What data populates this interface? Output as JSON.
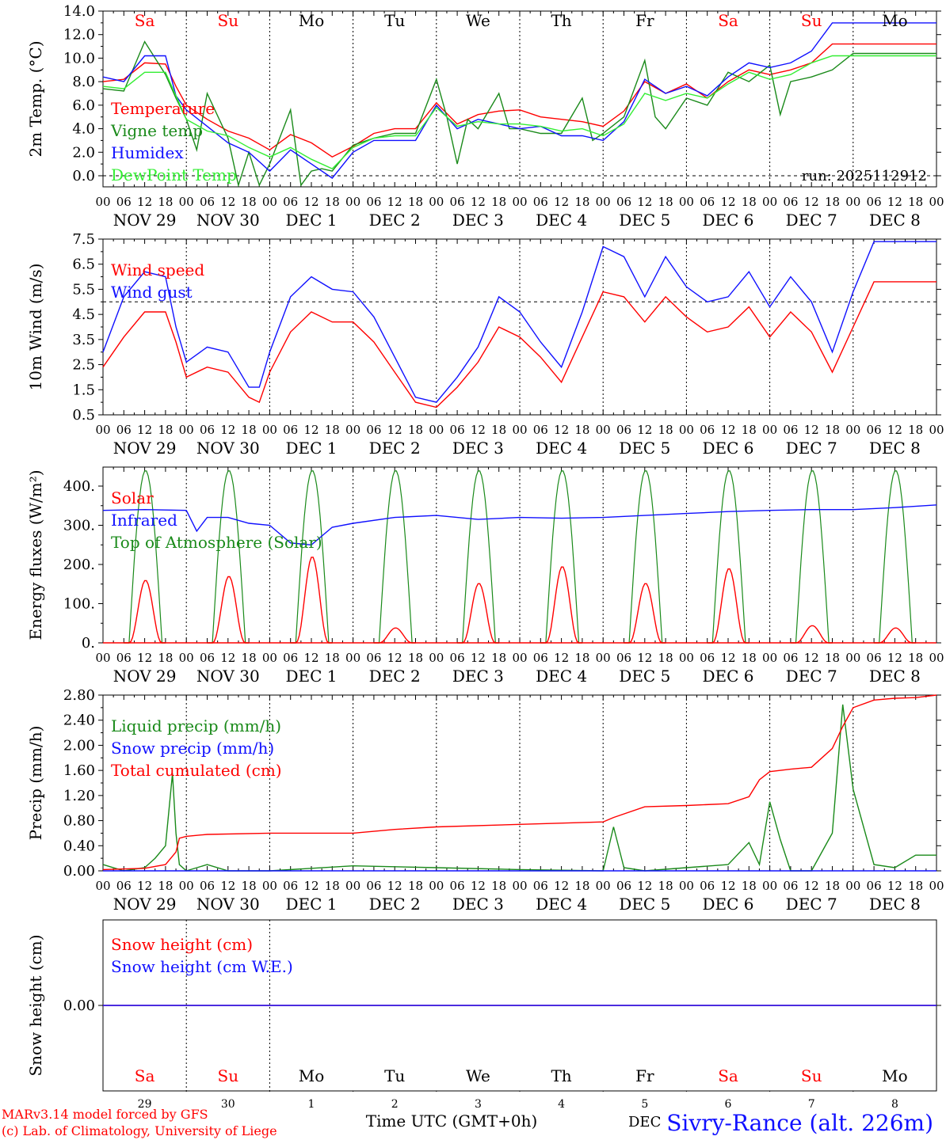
{
  "colors": {
    "red": "#ff0000",
    "green": "#1a8a1a",
    "blue": "#1010ff",
    "lightgreen": "#33ee33",
    "black": "#000000"
  },
  "days": [
    {
      "abbr": "Sa",
      "weekend": true,
      "date": "NOV 29",
      "num": "29"
    },
    {
      "abbr": "Su",
      "weekend": true,
      "date": "NOV 30",
      "num": "30"
    },
    {
      "abbr": "Mo",
      "weekend": false,
      "date": "DEC  1",
      "num": "1"
    },
    {
      "abbr": "Tu",
      "weekend": false,
      "date": "DEC  2",
      "num": "2"
    },
    {
      "abbr": "We",
      "weekend": false,
      "date": "DEC  3",
      "num": "3"
    },
    {
      "abbr": "Th",
      "weekend": false,
      "date": "DEC  4",
      "num": "4"
    },
    {
      "abbr": "Fr",
      "weekend": false,
      "date": "DEC  5",
      "num": "5"
    },
    {
      "abbr": "Sa",
      "weekend": true,
      "date": "DEC  6",
      "num": "6"
    },
    {
      "abbr": "Su",
      "weekend": true,
      "date": "DEC  7",
      "num": "7"
    },
    {
      "abbr": "Mo",
      "weekend": false,
      "date": "DEC  8",
      "num": "8"
    }
  ],
  "hour_labels": [
    "00",
    "06",
    "12",
    "18"
  ],
  "footer": {
    "model_line": "MARv3.14 model forced by GFS",
    "lab_line": "(c) Lab. of Climatology, University of Liege",
    "xlabel": "Time UTC (GMT+0h)",
    "station": "Sivry-Rance (alt. 226m)",
    "station_prefix": "DEC"
  },
  "chart_data": [
    {
      "type": "line",
      "ylabel": "2m Temp. (°C)",
      "ylim": [
        -0.8,
        14
      ],
      "yticks": [
        "0.0",
        "2.0",
        "4.0",
        "6.0",
        "8.0",
        "10.0",
        "12.0",
        "14.0"
      ],
      "ytick_values": [
        0,
        2,
        4,
        6,
        8,
        10,
        12,
        14
      ],
      "dashed_y": 0,
      "run": "run: 2025112912",
      "x_unit": "hours since 00 UTC, NOV 29",
      "series": [
        {
          "name": "Temperature",
          "color": "#ff0000",
          "x": [
            0,
            6,
            12,
            18,
            21,
            24,
            30,
            36,
            42,
            48,
            54,
            60,
            66,
            72,
            78,
            84,
            90,
            96,
            102,
            108,
            114,
            120,
            126,
            132,
            138,
            144,
            150,
            156,
            162,
            168,
            174,
            180,
            186,
            192,
            198,
            204,
            210,
            216,
            222,
            228,
            234,
            240
          ],
          "y": [
            8.0,
            8.2,
            9.6,
            9.5,
            7.6,
            6.0,
            4.8,
            3.8,
            3.2,
            2.2,
            3.5,
            2.8,
            1.6,
            2.5,
            3.6,
            4.0,
            4.0,
            6.2,
            4.4,
            5.2,
            5.5,
            5.6,
            5.0,
            4.8,
            4.6,
            4.2,
            5.5,
            8.0,
            7.0,
            7.8,
            6.6,
            8.0,
            9.0,
            8.6,
            9.0,
            9.6,
            11.2,
            11.2,
            11.2,
            11.2,
            11.2,
            11.2
          ]
        },
        {
          "name": "Vigne temp",
          "color": "#1a8a1a",
          "x": [
            0,
            6,
            12,
            18,
            21,
            24,
            27,
            30,
            36,
            39,
            42,
            45,
            48,
            54,
            57,
            60,
            63,
            66,
            72,
            78,
            84,
            90,
            96,
            99,
            102,
            105,
            108,
            114,
            117,
            120,
            126,
            132,
            138,
            141,
            144,
            150,
            156,
            159,
            162,
            168,
            174,
            180,
            186,
            192,
            195,
            198,
            204,
            210,
            216,
            222,
            228,
            234,
            240
          ],
          "y": [
            7.4,
            7.2,
            11.4,
            8.6,
            6.6,
            4.8,
            2.2,
            7.0,
            3.2,
            -0.8,
            2.0,
            -0.8,
            1.0,
            5.6,
            -0.8,
            0.4,
            0.6,
            0.4,
            2.6,
            3.2,
            3.6,
            3.6,
            8.2,
            5.0,
            1.0,
            4.8,
            4.0,
            7.0,
            4.0,
            4.0,
            3.6,
            3.6,
            6.6,
            3.0,
            3.6,
            5.0,
            9.8,
            5.0,
            4.0,
            6.6,
            6.0,
            8.8,
            8.0,
            9.4,
            5.2,
            8.0,
            8.4,
            9.0,
            10.4,
            10.4,
            10.4,
            10.4,
            10.4
          ]
        },
        {
          "name": "Humidex",
          "color": "#1010ff",
          "x": [
            0,
            6,
            12,
            18,
            21,
            24,
            30,
            36,
            42,
            48,
            54,
            60,
            66,
            72,
            78,
            84,
            90,
            96,
            102,
            108,
            114,
            120,
            126,
            132,
            138,
            144,
            150,
            156,
            162,
            168,
            174,
            180,
            186,
            192,
            198,
            204,
            210,
            216,
            222,
            228,
            234,
            240
          ],
          "y": [
            8.4,
            8.0,
            10.2,
            10.2,
            6.8,
            5.6,
            4.2,
            2.8,
            2.0,
            0.4,
            2.2,
            1.0,
            -0.2,
            2.0,
            3.0,
            3.0,
            3.0,
            6.0,
            4.0,
            4.8,
            4.4,
            4.0,
            4.2,
            3.4,
            3.4,
            3.0,
            4.6,
            8.2,
            7.0,
            7.6,
            6.8,
            8.4,
            9.6,
            9.2,
            9.6,
            10.6,
            13.0,
            13.0,
            13.0,
            13.0,
            13.0,
            13.0
          ]
        },
        {
          "name": "DewPoint Temp",
          "color": "#33ee33",
          "x": [
            0,
            6,
            12,
            18,
            21,
            24,
            30,
            36,
            42,
            48,
            54,
            60,
            66,
            72,
            78,
            84,
            90,
            96,
            102,
            108,
            114,
            120,
            126,
            132,
            138,
            144,
            150,
            156,
            162,
            168,
            174,
            180,
            186,
            192,
            198,
            204,
            210,
            216,
            222,
            228,
            234,
            240
          ],
          "y": [
            7.6,
            7.4,
            8.8,
            8.8,
            6.8,
            4.8,
            3.8,
            3.4,
            2.4,
            1.6,
            2.4,
            1.4,
            0.6,
            2.4,
            3.2,
            3.4,
            3.4,
            5.8,
            4.2,
            4.6,
            4.4,
            4.4,
            4.2,
            3.8,
            4.0,
            3.4,
            4.4,
            7.0,
            6.4,
            7.0,
            6.6,
            7.8,
            8.8,
            8.2,
            8.6,
            9.6,
            10.2,
            10.2,
            10.2,
            10.2,
            10.2,
            10.2
          ]
        }
      ]
    },
    {
      "type": "line",
      "ylabel": "10m Wind (m/s)",
      "ylim": [
        0.5,
        7.5
      ],
      "yticks": [
        "0.5",
        "1.5",
        "2.5",
        "3.5",
        "4.5",
        "5.5",
        "6.5",
        "7.5"
      ],
      "ytick_values": [
        0.5,
        1.5,
        2.5,
        3.5,
        4.5,
        5.5,
        6.5,
        7.5
      ],
      "dashed_y": 5.0,
      "x_unit": "hours since 00 UTC, NOV 29",
      "series": [
        {
          "name": "Wind speed",
          "color": "#ff0000",
          "x": [
            0,
            6,
            12,
            18,
            21,
            24,
            30,
            36,
            42,
            45,
            48,
            54,
            60,
            66,
            72,
            78,
            84,
            90,
            96,
            102,
            108,
            114,
            120,
            126,
            132,
            138,
            144,
            150,
            156,
            162,
            168,
            174,
            180,
            186,
            192,
            198,
            204,
            210,
            216,
            222,
            228,
            234,
            240
          ],
          "y": [
            2.4,
            3.6,
            4.6,
            4.6,
            3.4,
            2.0,
            2.4,
            2.2,
            1.2,
            1.0,
            2.2,
            3.8,
            4.6,
            4.2,
            4.2,
            3.4,
            2.2,
            1.0,
            0.8,
            1.6,
            2.6,
            4.0,
            3.6,
            2.8,
            1.8,
            3.6,
            5.4,
            5.2,
            4.2,
            5.2,
            4.4,
            3.8,
            4.0,
            4.8,
            3.6,
            4.6,
            3.8,
            2.2,
            4.0,
            5.8,
            5.8,
            5.8,
            5.8
          ]
        },
        {
          "name": "Wind gust",
          "color": "#1010ff",
          "x": [
            0,
            6,
            12,
            18,
            21,
            24,
            30,
            36,
            42,
            45,
            48,
            54,
            60,
            66,
            72,
            78,
            84,
            90,
            96,
            102,
            108,
            114,
            120,
            126,
            132,
            138,
            144,
            150,
            156,
            162,
            168,
            174,
            180,
            186,
            192,
            198,
            204,
            210,
            216,
            222,
            228,
            234,
            240
          ],
          "y": [
            3.0,
            5.2,
            6.2,
            6.0,
            4.0,
            2.6,
            3.2,
            3.0,
            1.6,
            1.6,
            3.0,
            5.2,
            6.0,
            5.5,
            5.4,
            4.4,
            2.8,
            1.2,
            1.0,
            2.0,
            3.2,
            5.2,
            4.6,
            3.4,
            2.4,
            4.6,
            7.2,
            6.8,
            5.2,
            6.8,
            5.6,
            5.0,
            5.2,
            6.2,
            4.8,
            6.0,
            5.0,
            3.0,
            5.4,
            7.4,
            7.4,
            7.4,
            7.4
          ]
        }
      ]
    },
    {
      "type": "line",
      "ylabel": "Energy fluxes (W/m²)",
      "ylim": [
        0,
        450
      ],
      "yticks": [
        "0.",
        "100.",
        "200.",
        "300.",
        "400."
      ],
      "ytick_values": [
        0,
        100,
        200,
        300,
        400
      ],
      "x_unit": "hours since 00 UTC, NOV 29",
      "diurnal_peaks_solar": [
        160,
        170,
        220,
        38,
        152,
        195,
        152,
        190,
        44,
        38
      ],
      "diurnal_peak_toa": 440,
      "series": [
        {
          "name": "Solar",
          "color": "#ff0000"
        },
        {
          "name": "Infrared",
          "color": "#1010ff",
          "x": [
            0,
            12,
            24,
            27,
            30,
            36,
            42,
            48,
            54,
            60,
            66,
            72,
            84,
            96,
            108,
            120,
            132,
            144,
            156,
            168,
            180,
            192,
            204,
            216,
            228,
            240
          ],
          "y": [
            338,
            340,
            338,
            285,
            320,
            320,
            305,
            300,
            255,
            250,
            295,
            305,
            320,
            325,
            315,
            320,
            318,
            320,
            325,
            330,
            335,
            338,
            340,
            340,
            345,
            352
          ]
        },
        {
          "name": "Top of Atmosphere (Solar)",
          "color": "#1a8a1a"
        }
      ]
    },
    {
      "type": "line",
      "ylabel": "Precip (mm/h)",
      "ylim": [
        0,
        2.8
      ],
      "yticks": [
        "0.00",
        "0.40",
        "0.80",
        "1.20",
        "1.60",
        "2.00",
        "2.40",
        "2.80"
      ],
      "ytick_values": [
        0,
        0.4,
        0.8,
        1.2,
        1.6,
        2.0,
        2.4,
        2.8
      ],
      "x_unit": "hours since 00 UTC, NOV 29",
      "series": [
        {
          "name": "Liquid precip (mm/h)",
          "color": "#1a8a1a",
          "x": [
            0,
            6,
            12,
            15,
            18,
            20,
            21,
            22,
            24,
            30,
            36,
            48,
            72,
            96,
            120,
            144,
            147,
            150,
            156,
            168,
            180,
            186,
            189,
            192,
            195,
            198,
            204,
            210,
            213,
            216,
            222,
            228,
            234,
            240
          ],
          "y": [
            0.1,
            0.0,
            0.05,
            0.2,
            0.4,
            1.55,
            0.6,
            0.1,
            0.0,
            0.1,
            0.0,
            0.0,
            0.08,
            0.05,
            0.02,
            0.0,
            0.7,
            0.05,
            0.0,
            0.05,
            0.1,
            0.45,
            0.1,
            1.1,
            0.5,
            0.0,
            0.0,
            0.6,
            2.65,
            1.3,
            0.1,
            0.05,
            0.25,
            0.25
          ]
        },
        {
          "name": "Snow precip (mm/h)",
          "color": "#1010ff",
          "x": [
            0,
            240
          ],
          "y": [
            0,
            0
          ]
        },
        {
          "name": "Total cumulated (cm)",
          "color": "#ff0000",
          "x": [
            0,
            12,
            18,
            21,
            22,
            24,
            30,
            48,
            72,
            84,
            96,
            120,
            144,
            147,
            156,
            168,
            180,
            186,
            189,
            192,
            198,
            204,
            210,
            213,
            216,
            222,
            228,
            234,
            240
          ],
          "y": [
            0.02,
            0.04,
            0.1,
            0.3,
            0.52,
            0.55,
            0.58,
            0.6,
            0.6,
            0.66,
            0.7,
            0.74,
            0.78,
            0.85,
            1.02,
            1.04,
            1.07,
            1.18,
            1.45,
            1.58,
            1.62,
            1.65,
            1.95,
            2.3,
            2.6,
            2.72,
            2.75,
            2.76,
            2.8
          ]
        }
      ]
    },
    {
      "type": "line",
      "ylabel": "Snow height (cm)",
      "ylim": [
        -1,
        1
      ],
      "yticks": [
        "0.00"
      ],
      "ytick_values": [
        0
      ],
      "x_unit": "hours since 00 UTC, NOV 29",
      "series": [
        {
          "name": "Snow height (cm)",
          "color": "#ff0000",
          "x": [
            0,
            240
          ],
          "y": [
            0,
            0
          ]
        },
        {
          "name": "Snow height (cm W.E.)",
          "color": "#1010ff",
          "x": [
            0,
            240
          ],
          "y": [
            0,
            0
          ]
        }
      ]
    }
  ]
}
